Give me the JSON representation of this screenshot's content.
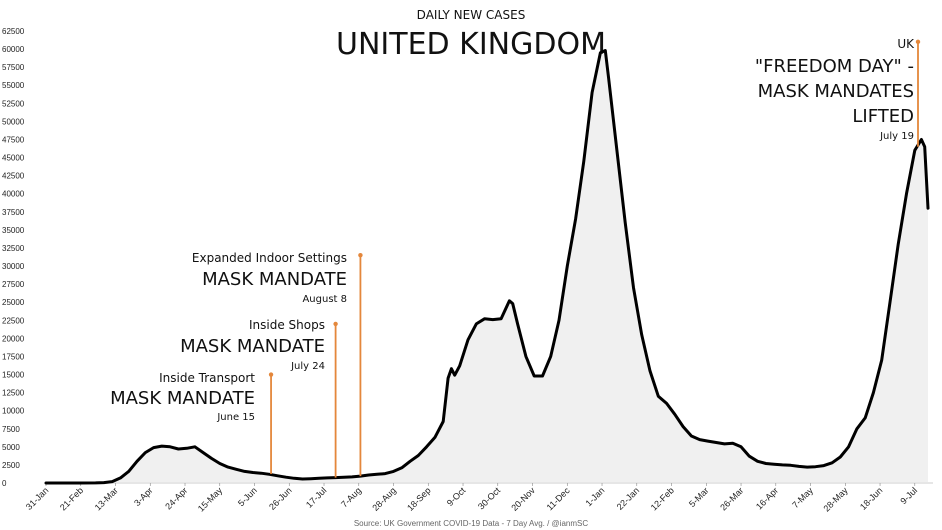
{
  "chart_data": {
    "type": "area",
    "subtitle": "DAILY NEW CASES",
    "title": "UNITED KINGDOM",
    "source": "Source: UK Government COVID-19 Data - 7 Day Avg. / @ianmSC",
    "ylim": [
      0,
      62500
    ],
    "yticks": [
      0,
      2500,
      5000,
      7500,
      10000,
      12500,
      15000,
      17500,
      20000,
      22500,
      25000,
      27500,
      30000,
      32500,
      35000,
      37500,
      40000,
      42500,
      45000,
      47500,
      50000,
      52500,
      55000,
      57500,
      60000,
      62500
    ],
    "xticks": [
      "31-Jan",
      "21-Feb",
      "13-Mar",
      "3-Apr",
      "24-Apr",
      "15-May",
      "5-Jun",
      "26-Jun",
      "17-Jul",
      "7-Aug",
      "28-Aug",
      "18-Sep",
      "9-Oct",
      "30-Oct",
      "20-Nov",
      "11-Dec",
      "1-Jan",
      "22-Jan",
      "12-Feb",
      "5-Mar",
      "26-Mar",
      "16-Apr",
      "7-May",
      "28-May",
      "18-Jun",
      "9-Jul"
    ],
    "grid": false,
    "series": [
      {
        "values": [
          [
            0,
            0
          ],
          [
            20,
            0
          ],
          [
            30,
            20
          ],
          [
            35,
            50
          ],
          [
            40,
            200
          ],
          [
            45,
            700
          ],
          [
            50,
            1600
          ],
          [
            55,
            3000
          ],
          [
            60,
            4200
          ],
          [
            65,
            4900
          ],
          [
            70,
            5100
          ],
          [
            75,
            5000
          ],
          [
            80,
            4700
          ],
          [
            85,
            4800
          ],
          [
            90,
            5000
          ],
          [
            95,
            4200
          ],
          [
            100,
            3400
          ],
          [
            105,
            2700
          ],
          [
            110,
            2200
          ],
          [
            115,
            1900
          ],
          [
            120,
            1600
          ],
          [
            125,
            1450
          ],
          [
            130,
            1350
          ],
          [
            135,
            1200
          ],
          [
            140,
            1000
          ],
          [
            145,
            800
          ],
          [
            150,
            650
          ],
          [
            155,
            550
          ],
          [
            160,
            600
          ],
          [
            165,
            650
          ],
          [
            170,
            700
          ],
          [
            175,
            750
          ],
          [
            180,
            800
          ],
          [
            185,
            850
          ],
          [
            190,
            950
          ],
          [
            195,
            1100
          ],
          [
            200,
            1200
          ],
          [
            205,
            1300
          ],
          [
            210,
            1600
          ],
          [
            215,
            2100
          ],
          [
            220,
            3000
          ],
          [
            225,
            3800
          ],
          [
            230,
            5000
          ],
          [
            235,
            6300
          ],
          [
            240,
            8500
          ],
          [
            243,
            14500
          ],
          [
            245,
            15800
          ],
          [
            247,
            14900
          ],
          [
            250,
            16200
          ],
          [
            255,
            19800
          ],
          [
            260,
            22000
          ],
          [
            265,
            22700
          ],
          [
            270,
            22600
          ],
          [
            275,
            22700
          ],
          [
            280,
            25200
          ],
          [
            282,
            24800
          ],
          [
            285,
            22000
          ],
          [
            290,
            17500
          ],
          [
            295,
            14800
          ],
          [
            300,
            14800
          ],
          [
            305,
            17500
          ],
          [
            310,
            22500
          ],
          [
            315,
            30000
          ],
          [
            320,
            36500
          ],
          [
            325,
            44500
          ],
          [
            330,
            54000
          ],
          [
            335,
            59500
          ],
          [
            338,
            59800
          ],
          [
            340,
            56000
          ],
          [
            345,
            46000
          ],
          [
            350,
            36000
          ],
          [
            355,
            27000
          ],
          [
            360,
            20500
          ],
          [
            365,
            15500
          ],
          [
            370,
            12000
          ],
          [
            375,
            11000
          ],
          [
            380,
            9500
          ],
          [
            385,
            7800
          ],
          [
            390,
            6500
          ],
          [
            395,
            6000
          ],
          [
            400,
            5800
          ],
          [
            405,
            5600
          ],
          [
            410,
            5400
          ],
          [
            415,
            5500
          ],
          [
            420,
            5000
          ],
          [
            425,
            3700
          ],
          [
            430,
            3000
          ],
          [
            435,
            2700
          ],
          [
            440,
            2600
          ],
          [
            445,
            2500
          ],
          [
            450,
            2450
          ],
          [
            455,
            2300
          ],
          [
            460,
            2200
          ],
          [
            465,
            2250
          ],
          [
            470,
            2400
          ],
          [
            475,
            2800
          ],
          [
            480,
            3600
          ],
          [
            485,
            5000
          ],
          [
            490,
            7500
          ],
          [
            495,
            9000
          ],
          [
            500,
            12500
          ],
          [
            505,
            17000
          ],
          [
            510,
            25000
          ],
          [
            515,
            33000
          ],
          [
            520,
            40000
          ],
          [
            525,
            46000
          ],
          [
            529,
            47500
          ],
          [
            531,
            46500
          ],
          [
            533,
            38000
          ]
        ]
      }
    ],
    "annotations": [
      {
        "small": "Inside Transport",
        "big": "MASK MANDATE",
        "date": "June 15"
      },
      {
        "small": "Inside Shops",
        "big": "MASK MANDATE",
        "date": "July 24"
      },
      {
        "small": "Expanded Indoor Settings",
        "big": "MASK MANDATE",
        "date": "August 8"
      },
      {
        "small": "UK",
        "big1": "\"FREEDOM DAY\" -",
        "big2": "MASK MANDATES",
        "big3": "LIFTED",
        "date": "July 19"
      }
    ],
    "colors": {
      "line": "#000000",
      "fill": "#e6e6e6",
      "marker": "#e4873b"
    }
  }
}
